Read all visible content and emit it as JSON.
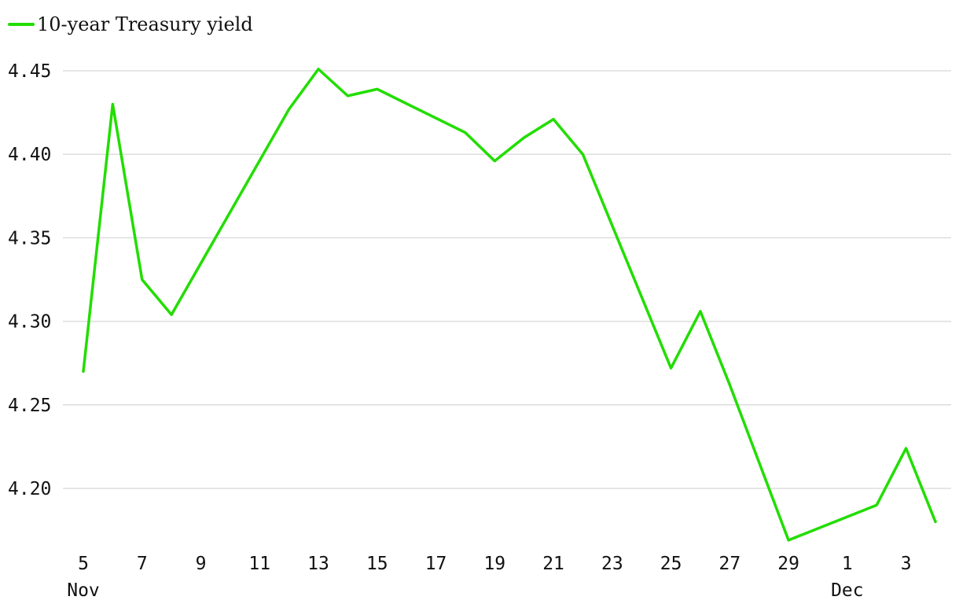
{
  "chart_data": {
    "type": "line",
    "title": "",
    "xlabel": "",
    "ylabel": "",
    "ylim": [
      4.167,
      4.455
    ],
    "yticks": [
      "4.20",
      "4.25",
      "4.30",
      "4.35",
      "4.40",
      "4.45"
    ],
    "x": [
      "Nov 5",
      "Nov 6",
      "Nov 7",
      "Nov 8",
      "Nov 12",
      "Nov 13",
      "Nov 14",
      "Nov 15",
      "Nov 18",
      "Nov 19",
      "Nov 20",
      "Nov 21",
      "Nov 22",
      "Nov 25",
      "Nov 26",
      "Nov 27",
      "Nov 29",
      "Dec 2",
      "Dec 3",
      "Dec 4"
    ],
    "xticks": [
      {
        "date": "Nov 5",
        "label": "5",
        "month": "Nov"
      },
      {
        "date": "Nov 7",
        "label": "7",
        "month": ""
      },
      {
        "date": "Nov 9",
        "label": "9",
        "month": ""
      },
      {
        "date": "Nov 11",
        "label": "11",
        "month": ""
      },
      {
        "date": "Nov 13",
        "label": "13",
        "month": ""
      },
      {
        "date": "Nov 15",
        "label": "15",
        "month": ""
      },
      {
        "date": "Nov 17",
        "label": "17",
        "month": ""
      },
      {
        "date": "Nov 19",
        "label": "19",
        "month": ""
      },
      {
        "date": "Nov 21",
        "label": "21",
        "month": ""
      },
      {
        "date": "Nov 23",
        "label": "23",
        "month": ""
      },
      {
        "date": "Nov 25",
        "label": "25",
        "month": ""
      },
      {
        "date": "Nov 27",
        "label": "27",
        "month": ""
      },
      {
        "date": "Nov 29",
        "label": "29",
        "month": ""
      },
      {
        "date": "Dec 1",
        "label": "1",
        "month": "Dec"
      },
      {
        "date": "Dec 3",
        "label": "3",
        "month": ""
      }
    ],
    "series": [
      {
        "name": "10-year Treasury yield",
        "color": "#22dd00",
        "values": [
          4.27,
          4.43,
          4.325,
          4.304,
          4.427,
          4.451,
          4.435,
          4.439,
          4.413,
          4.396,
          4.41,
          4.421,
          4.4,
          4.272,
          4.306,
          4.262,
          4.169,
          4.19,
          4.224,
          4.18
        ]
      }
    ],
    "grid": true,
    "legend": "top-left"
  }
}
